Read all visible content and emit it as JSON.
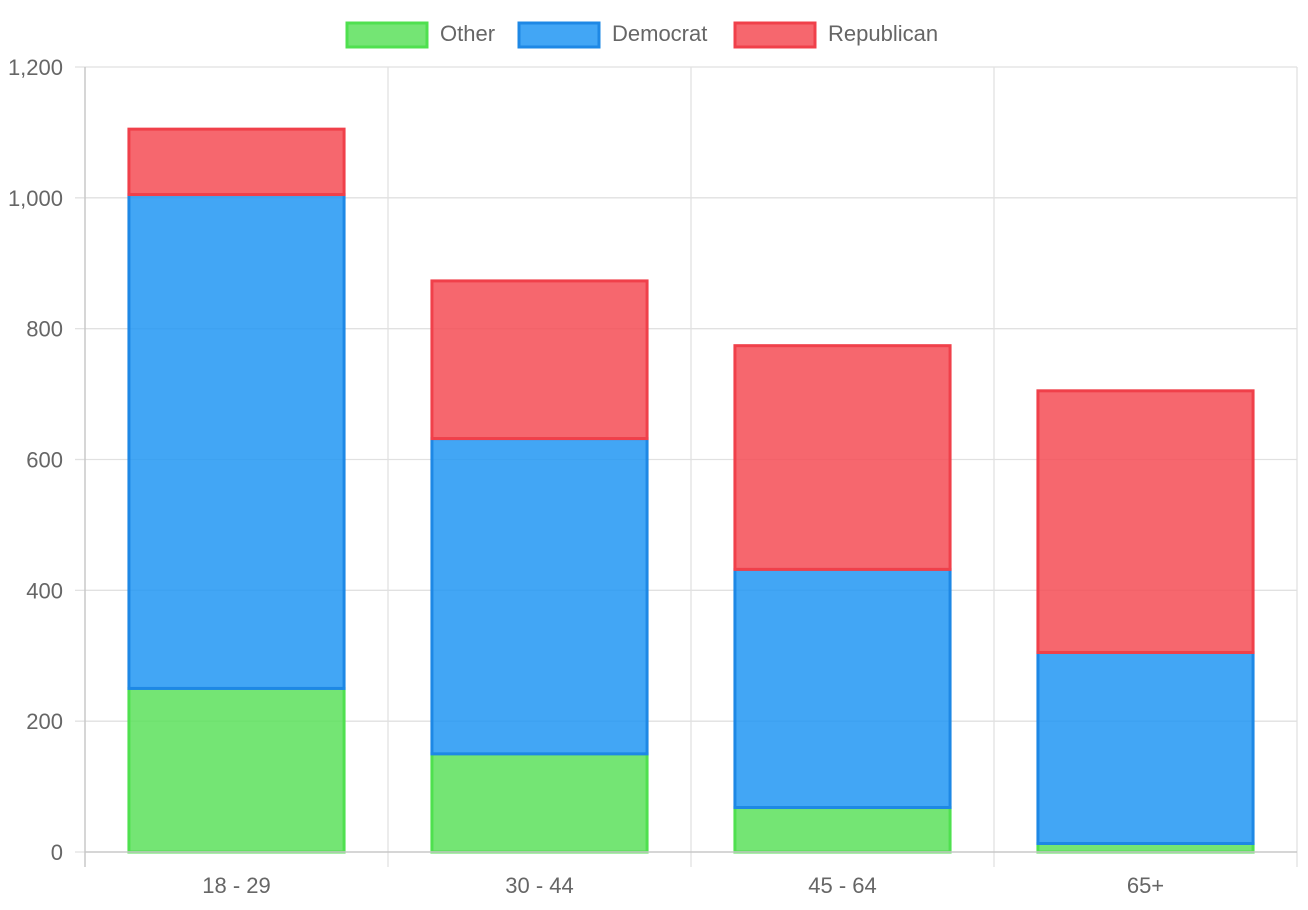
{
  "chart_data": {
    "type": "bar",
    "stacked": true,
    "categories": [
      "18 - 29",
      "30 - 44",
      "45 - 64",
      "65+"
    ],
    "series": [
      {
        "name": "Other",
        "values": [
          250,
          150,
          68,
          13
        ],
        "fill": "#5ce15c",
        "stroke": "#4fe04f"
      },
      {
        "name": "Democrat",
        "values": [
          755,
          482,
          364,
          292
        ],
        "fill": "#2196f3",
        "stroke": "#1e88e5"
      },
      {
        "name": "Republican",
        "values": [
          100,
          241,
          342,
          400
        ],
        "fill": "#f44c55",
        "stroke": "#f0404a"
      }
    ],
    "ylim": [
      0,
      1200
    ],
    "yticks": [
      0,
      200,
      400,
      600,
      800,
      1000,
      1200
    ],
    "ytick_labels": [
      "0",
      "200",
      "400",
      "600",
      "800",
      "1,000",
      "1,200"
    ],
    "legend_position": "top-center",
    "grid": true
  }
}
